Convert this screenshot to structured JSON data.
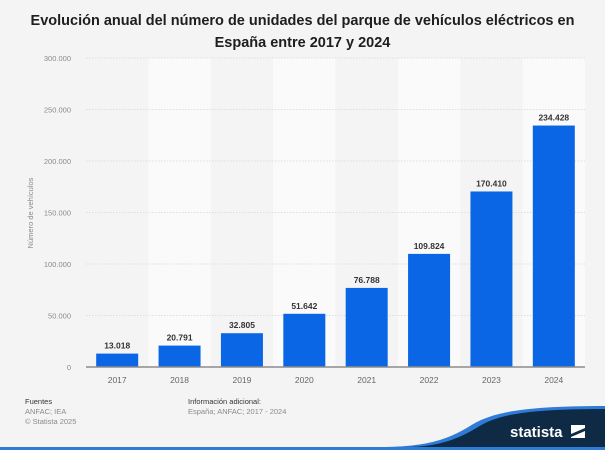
{
  "title_lines": [
    "Evolución anual del número de unidades del parque de vehículos eléctricos en",
    "España entre 2017 y 2024"
  ],
  "chart_data": {
    "type": "bar",
    "title": "Evolución anual del número de unidades del parque de vehículos eléctricos en España entre 2017 y 2024",
    "categories": [
      "2017",
      "2018",
      "2019",
      "2020",
      "2021",
      "2022",
      "2023",
      "2024"
    ],
    "values": [
      13018,
      20791,
      32805,
      51642,
      76788,
      109824,
      170410,
      234428
    ],
    "value_labels": [
      "13.018",
      "20.791",
      "32.805",
      "51.642",
      "76.788",
      "109.824",
      "170.410",
      "234.428"
    ],
    "xlabel": "",
    "ylabel": "Número de vehículos",
    "ylim": [
      0,
      300000
    ],
    "yticks": [
      0,
      50000,
      100000,
      150000,
      200000,
      250000,
      300000
    ],
    "ytick_labels": [
      "0",
      "50.000",
      "100.000",
      "150.000",
      "200.000",
      "250.000",
      "300.000"
    ],
    "grid": true,
    "bar_color": "#0a66e4",
    "legend": "none"
  },
  "footer": {
    "sources_heading": "Fuentes",
    "sources": "ANFAC; IEA",
    "copyright": "© Statista 2025",
    "info_heading": "Información adicional:",
    "info": "España; ANFAC; 2017 - 2024"
  },
  "brand": {
    "name": "statista",
    "dark_color": "#0f2a44",
    "accent_color": "#2f7bd8"
  }
}
